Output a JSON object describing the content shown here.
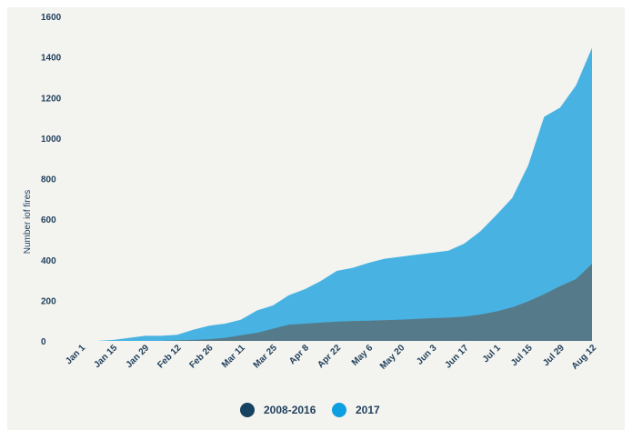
{
  "chart_data": {
    "type": "area",
    "stacked": false,
    "ylabel": "Number iof fires",
    "ylim": [
      0,
      1600
    ],
    "yticks": [
      0,
      200,
      400,
      600,
      800,
      1000,
      1200,
      1400,
      1600
    ],
    "xlabels": [
      "Jan 1",
      "Jan 15",
      "Jan 29",
      "Feb 12",
      "Feb 26",
      "Mar 11",
      "Mar 25",
      "Apr 8",
      "Apr 22",
      "May 6",
      "May 20",
      "Jun 3",
      "Jun 17",
      "Jul 1",
      "Jul 15",
      "Jul 29",
      "Aug 12"
    ],
    "grid": false,
    "legend_position": "bottom",
    "series": [
      {
        "name": "2017",
        "color": "#48b3e2",
        "values": [
          0,
          0,
          0,
          5,
          15,
          25,
          25,
          30,
          55,
          75,
          85,
          105,
          150,
          175,
          225,
          255,
          295,
          345,
          360,
          385,
          405,
          415,
          425,
          435,
          445,
          480,
          540,
          620,
          705,
          865,
          1105,
          1150,
          1260,
          1445
        ]
      },
      {
        "name": "2008-2016",
        "color": "#557a89",
        "values": [
          0,
          0,
          0,
          0,
          0,
          0,
          0,
          3,
          5,
          8,
          15,
          28,
          40,
          60,
          80,
          85,
          90,
          95,
          98,
          100,
          102,
          105,
          108,
          112,
          115,
          120,
          130,
          145,
          165,
          195,
          230,
          270,
          305,
          380
        ]
      }
    ],
    "legend": [
      {
        "label": "2008-2016",
        "color": "#16425f"
      },
      {
        "label": "2017",
        "color": "#0d9fe0"
      }
    ]
  }
}
